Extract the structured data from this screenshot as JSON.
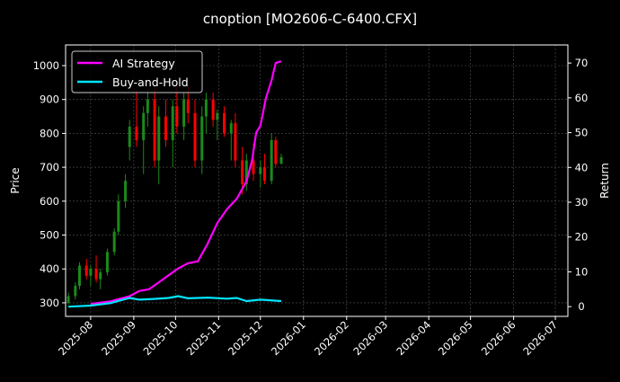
{
  "chart_data": {
    "type": "line",
    "title": "cnoption [MO2606-C-6400.CFX]",
    "ylabel_left": "Price",
    "ylabel_right": "Return",
    "xlim": [
      "2025-07-14",
      "2026-07-10"
    ],
    "ylim_left": [
      260,
      1061
    ],
    "ylim_right": [
      -2.8,
      75.2
    ],
    "yticks_left": [
      300,
      400,
      500,
      600,
      700,
      800,
      900,
      1000
    ],
    "yticks_right": [
      0,
      10,
      20,
      30,
      40,
      50,
      60,
      70
    ],
    "xticks": [
      "2025-08",
      "2025-09",
      "2025-10",
      "2025-11",
      "2025-12",
      "2026-01",
      "2026-02",
      "2026-03",
      "2026-04",
      "2026-05",
      "2026-06",
      "2026-07"
    ],
    "grid": true,
    "legend_position": "top-left",
    "colors": {
      "up": "#1a8a1a",
      "down": "#ff0000",
      "strategy": "#ff00ff",
      "buyhold": "#00e5ff",
      "grid": "#555555"
    },
    "candles": [
      [
        "2025-07-16",
        300,
        330,
        295,
        320
      ],
      [
        "2025-07-21",
        320,
        360,
        310,
        350
      ],
      [
        "2025-07-24",
        350,
        420,
        340,
        410
      ],
      [
        "2025-07-29",
        410,
        430,
        370,
        380
      ],
      [
        "2025-08-01",
        380,
        410,
        350,
        400
      ],
      [
        "2025-08-05",
        400,
        440,
        360,
        370
      ],
      [
        "2025-08-08",
        370,
        400,
        340,
        390
      ],
      [
        "2025-08-13",
        390,
        460,
        380,
        450
      ],
      [
        "2025-08-18",
        450,
        520,
        440,
        510
      ],
      [
        "2025-08-21",
        510,
        620,
        500,
        600
      ],
      [
        "2025-08-26",
        600,
        680,
        580,
        660
      ],
      [
        "2025-08-29",
        760,
        840,
        720,
        820
      ],
      [
        "2025-09-03",
        820,
        930,
        760,
        780
      ],
      [
        "2025-09-08",
        780,
        880,
        680,
        860
      ],
      [
        "2025-09-11",
        860,
        930,
        820,
        900
      ],
      [
        "2025-09-16",
        900,
        950,
        700,
        720
      ],
      [
        "2025-09-19",
        720,
        880,
        650,
        850
      ],
      [
        "2025-09-24",
        850,
        900,
        760,
        780
      ],
      [
        "2025-09-29",
        780,
        900,
        700,
        880
      ],
      [
        "2025-10-02",
        880,
        940,
        800,
        820
      ],
      [
        "2025-10-07",
        820,
        920,
        780,
        900
      ],
      [
        "2025-10-10",
        900,
        940,
        830,
        860
      ],
      [
        "2025-10-15",
        860,
        900,
        700,
        720
      ],
      [
        "2025-10-20",
        720,
        880,
        680,
        850
      ],
      [
        "2025-10-23",
        850,
        920,
        800,
        900
      ],
      [
        "2025-10-28",
        900,
        920,
        820,
        840
      ],
      [
        "2025-10-31",
        840,
        870,
        780,
        860
      ],
      [
        "2025-11-05",
        860,
        880,
        790,
        800
      ],
      [
        "2025-11-10",
        800,
        840,
        720,
        830
      ],
      [
        "2025-11-13",
        830,
        860,
        700,
        720
      ],
      [
        "2025-11-18",
        720,
        760,
        620,
        650
      ],
      [
        "2025-11-21",
        650,
        740,
        630,
        720
      ],
      [
        "2025-11-26",
        720,
        770,
        660,
        680
      ],
      [
        "2025-12-01",
        680,
        720,
        640,
        700
      ],
      [
        "2025-12-04",
        700,
        740,
        650,
        660
      ],
      [
        "2025-12-09",
        660,
        800,
        650,
        780
      ],
      [
        "2025-12-12",
        780,
        790,
        700,
        710
      ],
      [
        "2025-12-16",
        710,
        740,
        710,
        730
      ]
    ],
    "series": [
      {
        "name": "AI Strategy",
        "points": [
          [
            "2025-08-01",
            0.8
          ],
          [
            "2025-08-15",
            1.5
          ],
          [
            "2025-08-29",
            3
          ],
          [
            "2025-09-05",
            4.5
          ],
          [
            "2025-09-12",
            5
          ],
          [
            "2025-09-19",
            7
          ],
          [
            "2025-09-26",
            9
          ],
          [
            "2025-10-03",
            11
          ],
          [
            "2025-10-10",
            12.5
          ],
          [
            "2025-10-17",
            13
          ],
          [
            "2025-10-24",
            18
          ],
          [
            "2025-10-31",
            24
          ],
          [
            "2025-11-07",
            28
          ],
          [
            "2025-11-14",
            31
          ],
          [
            "2025-11-21",
            36
          ],
          [
            "2025-11-25",
            42
          ],
          [
            "2025-11-28",
            50
          ],
          [
            "2025-12-01",
            52
          ],
          [
            "2025-12-05",
            60
          ],
          [
            "2025-12-09",
            65
          ],
          [
            "2025-12-12",
            70
          ],
          [
            "2025-12-16",
            70.5
          ]
        ]
      },
      {
        "name": "Buy-and-Hold",
        "points": [
          [
            "2025-07-16",
            0
          ],
          [
            "2025-08-01",
            0.3
          ],
          [
            "2025-08-15",
            1
          ],
          [
            "2025-08-29",
            2.5
          ],
          [
            "2025-09-05",
            2
          ],
          [
            "2025-09-15",
            2.2
          ],
          [
            "2025-09-26",
            2.5
          ],
          [
            "2025-10-03",
            3
          ],
          [
            "2025-10-10",
            2.4
          ],
          [
            "2025-10-24",
            2.6
          ],
          [
            "2025-11-07",
            2.3
          ],
          [
            "2025-11-14",
            2.5
          ],
          [
            "2025-11-21",
            1.6
          ],
          [
            "2025-12-01",
            2
          ],
          [
            "2025-12-16",
            1.6
          ]
        ]
      }
    ]
  }
}
